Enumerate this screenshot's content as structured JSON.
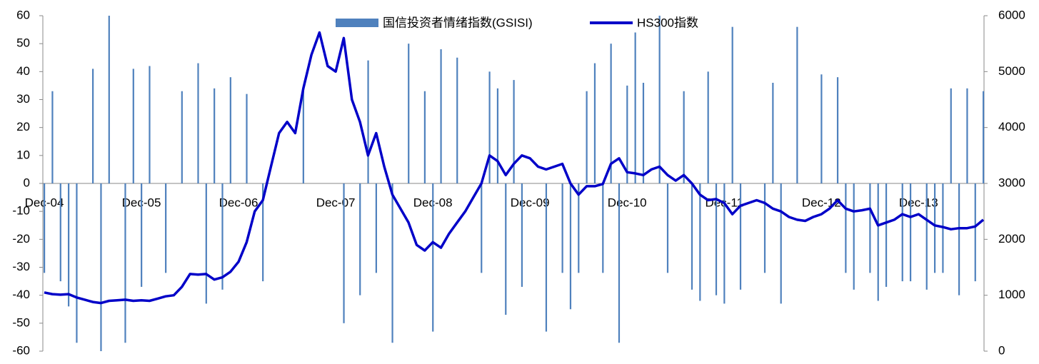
{
  "chart_data": {
    "type": "bar",
    "categories": [
      "Dec-04",
      null,
      null,
      null,
      null,
      null,
      null,
      null,
      null,
      null,
      null,
      null,
      "Dec-05",
      null,
      null,
      null,
      null,
      null,
      null,
      null,
      null,
      null,
      null,
      null,
      "Dec-06",
      null,
      null,
      null,
      null,
      null,
      null,
      null,
      null,
      null,
      null,
      null,
      "Dec-07",
      null,
      null,
      null,
      null,
      null,
      null,
      null,
      null,
      null,
      null,
      null,
      "Dec-08",
      null,
      null,
      null,
      null,
      null,
      null,
      null,
      null,
      null,
      null,
      null,
      "Dec-09",
      null,
      null,
      null,
      null,
      null,
      null,
      null,
      null,
      null,
      null,
      null,
      "Dec-10",
      null,
      null,
      null,
      null,
      null,
      null,
      null,
      null,
      null,
      null,
      null,
      "Dec-11",
      null,
      null,
      null,
      null,
      null,
      null,
      null,
      null,
      null,
      null,
      null,
      "Dec-12",
      null,
      null,
      null,
      null,
      null,
      null,
      null,
      null,
      null,
      null,
      null,
      "Dec-13",
      null,
      null,
      null,
      null,
      null,
      null,
      null,
      null
    ],
    "series": [
      {
        "name": "国信投资者情绪指数(GSISI)",
        "type": "bar",
        "color": "#4f81bd",
        "values": [
          -32,
          33,
          -35,
          -44,
          -57,
          0,
          41,
          -60,
          60,
          0,
          -57,
          41,
          -37,
          42,
          0,
          -32,
          0,
          33,
          0,
          43,
          -43,
          34,
          -38,
          38,
          0,
          32,
          0,
          -35,
          0,
          0,
          0,
          0,
          33,
          0,
          0,
          0,
          0,
          -50,
          0,
          -40,
          44,
          -32,
          0,
          -57,
          0,
          50,
          0,
          33,
          -53,
          48,
          0,
          45,
          0,
          0,
          -32,
          40,
          34,
          -47,
          37,
          -37,
          0,
          0,
          -53,
          0,
          -32,
          -45,
          -32,
          33,
          43,
          -32,
          50,
          -57,
          35,
          54,
          36,
          0,
          60,
          -32,
          0,
          33,
          -38,
          -42,
          40,
          -40,
          -43,
          56,
          -38,
          0,
          0,
          -32,
          36,
          -43,
          0,
          56,
          0,
          0,
          39,
          0,
          38,
          -32,
          -38,
          0,
          -32,
          -42,
          -37,
          0,
          -35,
          -35,
          0,
          -38,
          -32,
          -32,
          34,
          -40,
          34,
          -35,
          33
        ]
      },
      {
        "name": "HS300指数",
        "type": "line",
        "axis": "y2",
        "color": "#0000c8",
        "values": [
          1050,
          1020,
          1010,
          1020,
          960,
          920,
          880,
          860,
          900,
          910,
          920,
          900,
          910,
          900,
          940,
          980,
          1000,
          1150,
          1380,
          1370,
          1380,
          1280,
          1320,
          1420,
          1600,
          1950,
          2500,
          2700,
          3300,
          3900,
          4100,
          3900,
          4700,
          5300,
          5700,
          5100,
          5000,
          5600,
          4500,
          4100,
          3500,
          3900,
          3300,
          2800,
          2550,
          2300,
          1900,
          1800,
          1950,
          1850,
          2100,
          2300,
          2500,
          2750,
          3000,
          3500,
          3400,
          3150,
          3350,
          3500,
          3450,
          3300,
          3250,
          3300,
          3350,
          3000,
          2800,
          2950,
          2950,
          2990,
          3350,
          3450,
          3200,
          3180,
          3150,
          3250,
          3300,
          3150,
          3050,
          3150,
          3000,
          2800,
          2700,
          2720,
          2650,
          2450,
          2600,
          2650,
          2700,
          2650,
          2550,
          2500,
          2400,
          2350,
          2330,
          2400,
          2450,
          2550,
          2700,
          2550,
          2500,
          2520,
          2550,
          2250,
          2300,
          2350,
          2450,
          2400,
          2450,
          2350,
          2250,
          2220,
          2180,
          2200,
          2200,
          2230,
          2350
        ]
      }
    ],
    "ylim": [
      -60,
      60
    ],
    "yticks": [
      -60,
      -50,
      -40,
      -30,
      -20,
      -10,
      0,
      10,
      20,
      30,
      40,
      50,
      60
    ],
    "y2lim": [
      0,
      6000
    ],
    "y2ticks": [
      0,
      1000,
      2000,
      3000,
      4000,
      5000,
      6000
    ],
    "legend": "top"
  }
}
